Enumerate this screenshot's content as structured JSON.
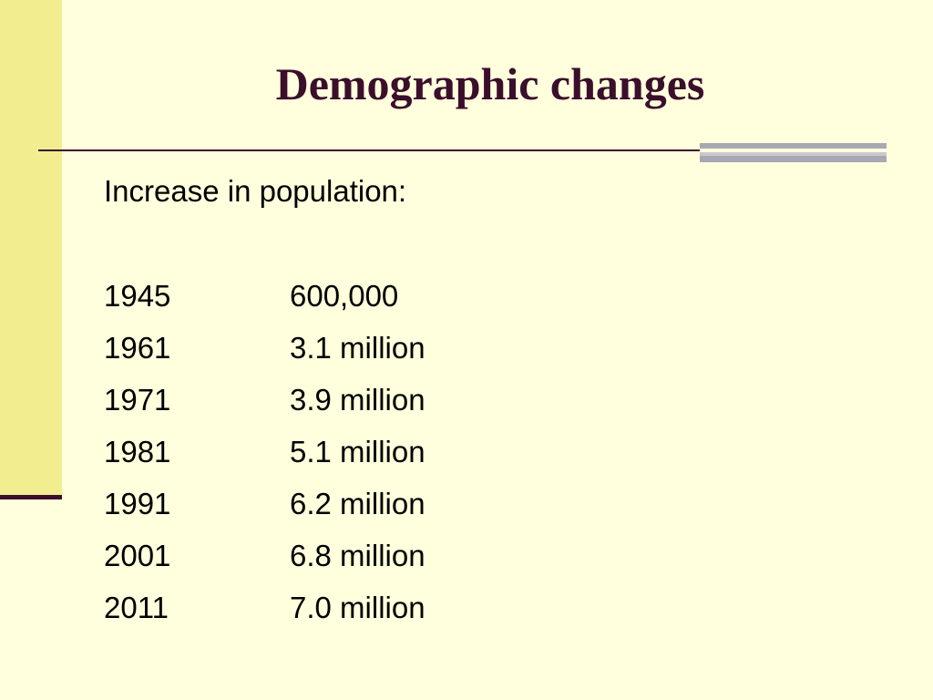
{
  "slide": {
    "title": "Demographic changes",
    "intro": "Increase in population:",
    "rows": [
      {
        "year": "1945",
        "population": "600,000"
      },
      {
        "year": "1961",
        "population": "3.1 million"
      },
      {
        "year": "1971",
        "population": "3.9 million"
      },
      {
        "year": "1981",
        "population": "5.1 million"
      },
      {
        "year": "1991",
        "population": "6.2 million"
      },
      {
        "year": "2001",
        "population": "6.8 million"
      },
      {
        "year": "2011",
        "population": "7.0 million"
      }
    ]
  },
  "colors": {
    "background": "#FFFFDD",
    "left_band": "#F2EE90",
    "title": "#3B0F2C",
    "rule": "#3B0F2C",
    "accent_bars": "#A8A8B4"
  }
}
